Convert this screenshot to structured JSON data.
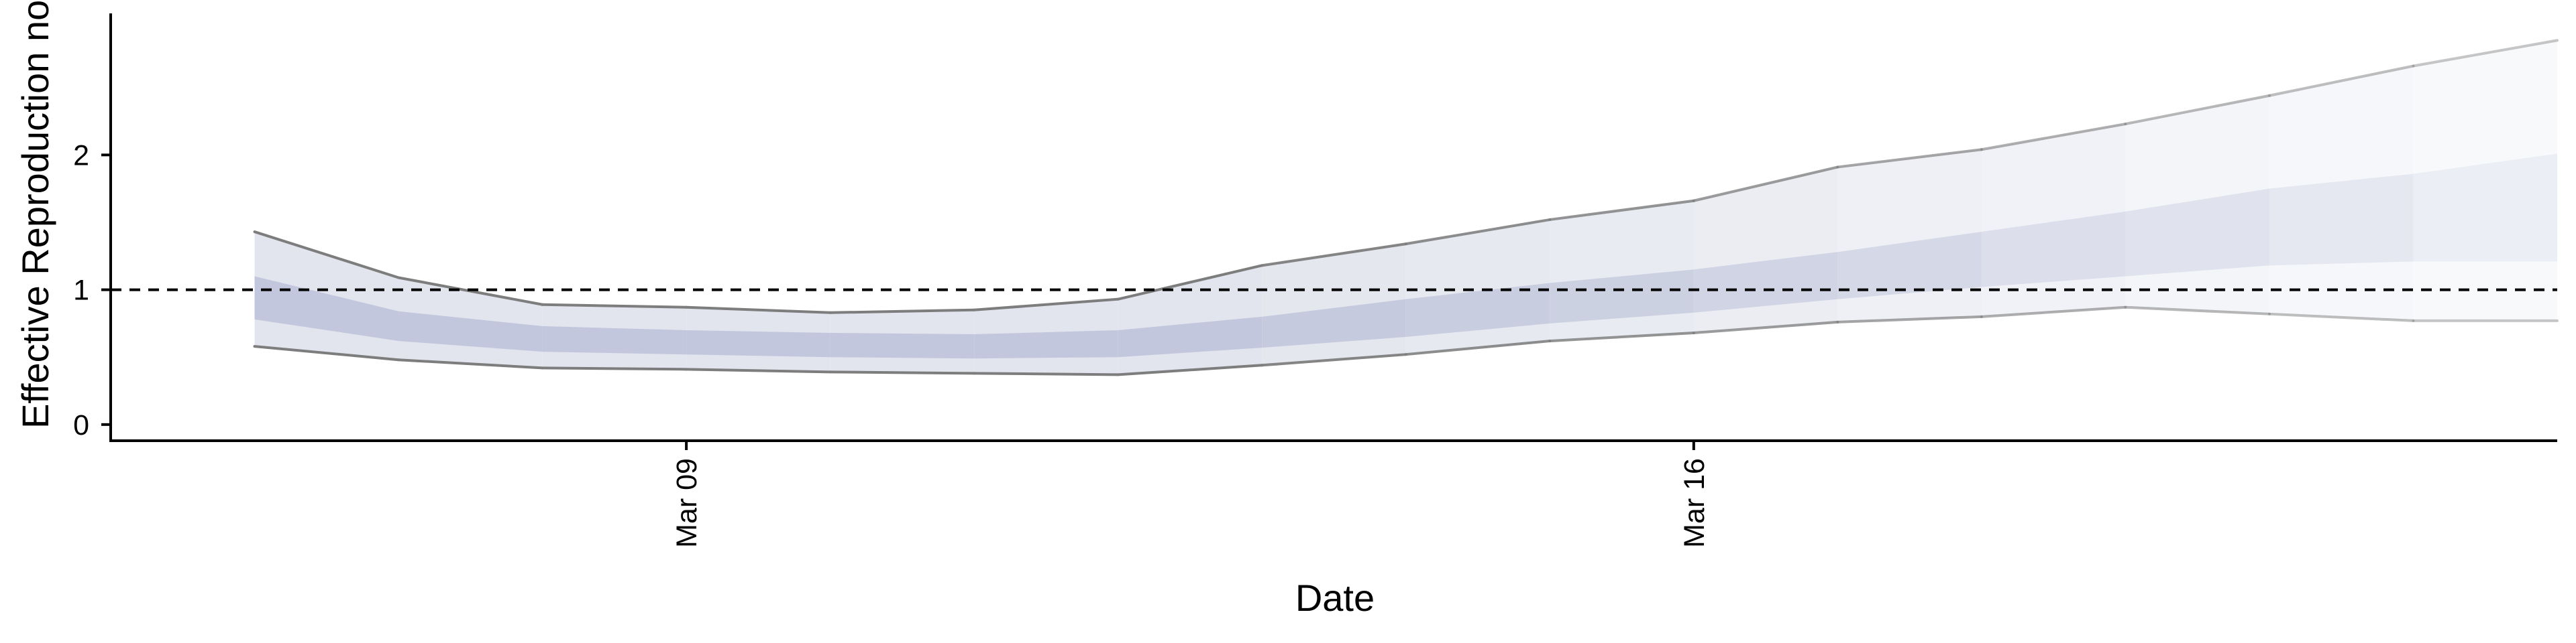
{
  "chart_data": {
    "type": "area",
    "xlabel": "Date",
    "ylabel": "Effective Reproduction no",
    "x_range": [
      "2020-03-05",
      "2020-03-22"
    ],
    "ylim": [
      -0.12,
      3.05
    ],
    "x_ticks": [
      {
        "date": "2020-03-09",
        "label": "Mar 09"
      },
      {
        "date": "2020-03-16",
        "label": "Mar 16"
      }
    ],
    "y_ticks": [
      {
        "value": 0,
        "label": "0"
      },
      {
        "value": 1,
        "label": "1"
      },
      {
        "value": 2,
        "label": "2"
      }
    ],
    "reference_line": {
      "value": 1,
      "style": "dashed"
    },
    "grid": false,
    "legend": "none",
    "colors": {
      "inner_band": "#bcc2d9",
      "outer_band": "#dfe2ec",
      "bound_line": "#7d7d7d",
      "axis": "#000000"
    },
    "dates": [
      "2020-03-06",
      "2020-03-07",
      "2020-03-08",
      "2020-03-09",
      "2020-03-10",
      "2020-03-11",
      "2020-03-12",
      "2020-03-13",
      "2020-03-14",
      "2020-03-15",
      "2020-03-16",
      "2020-03-17",
      "2020-03-18",
      "2020-03-19",
      "2020-03-20",
      "2020-03-21",
      "2020-03-22"
    ],
    "series": [
      {
        "name": "",
        "role": "lower_90",
        "values": [
          0.58,
          0.48,
          0.42,
          0.41,
          0.39,
          0.38,
          0.37,
          0.44,
          0.52,
          0.62,
          0.68,
          0.76,
          0.8,
          0.87,
          0.82,
          0.77,
          0.77
        ]
      },
      {
        "name": "",
        "role": "lower_50",
        "values": [
          0.78,
          0.62,
          0.54,
          0.52,
          0.5,
          0.49,
          0.5,
          0.57,
          0.65,
          0.75,
          0.83,
          0.93,
          1.02,
          1.1,
          1.18,
          1.21,
          1.21
        ]
      },
      {
        "name": "",
        "role": "upper_50",
        "values": [
          1.1,
          0.84,
          0.73,
          0.7,
          0.68,
          0.67,
          0.7,
          0.8,
          0.93,
          1.05,
          1.15,
          1.28,
          1.43,
          1.58,
          1.75,
          1.86,
          2.01
        ]
      },
      {
        "name": "",
        "role": "upper_90",
        "values": [
          1.43,
          1.09,
          0.89,
          0.87,
          0.83,
          0.85,
          0.93,
          1.18,
          1.34,
          1.52,
          1.66,
          1.91,
          2.04,
          2.23,
          2.44,
          2.66,
          2.85
        ]
      }
    ],
    "uncertainty_fade": [
      1.0,
      1.0,
      1.0,
      1.0,
      1.0,
      1.0,
      1.0,
      0.92,
      0.84,
      0.76,
      0.68,
      0.58,
      0.48,
      0.4,
      0.32,
      0.24,
      0.18
    ]
  }
}
